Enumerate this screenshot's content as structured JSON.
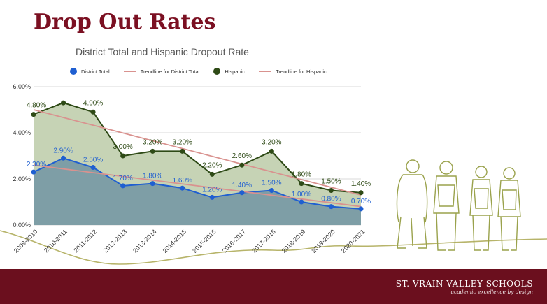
{
  "slide": {
    "title": "Drop Out Rates"
  },
  "brand": {
    "name": "ST. VRAIN VALLEY SCHOOLS",
    "tagline": "academic excellence by design"
  },
  "colors": {
    "brand": "#6b0f1e",
    "district": "#1f5fd1",
    "hispanic": "#2e4a16",
    "trendline": "#d9928f"
  },
  "chart_data": {
    "type": "area",
    "title": "District Total and Hispanic  Dropout Rate",
    "categories": [
      "2009-2010",
      "2010-2011",
      "2011-2012",
      "2012-2013",
      "2013-2014",
      "2014-2015",
      "2015-2016",
      "2016-2017",
      "2017-2018",
      "2018-2019",
      "2019-2020",
      "2020-2021"
    ],
    "series": [
      {
        "name": "District Total",
        "values": [
          2.3,
          2.9,
          2.5,
          1.7,
          1.8,
          1.6,
          1.2,
          1.4,
          1.5,
          1.0,
          0.8,
          0.7
        ],
        "labels": [
          "2.30%",
          "2.90%",
          "2.50%",
          "1.70%",
          "1.80%",
          "1.60%",
          "1.20%",
          "1.40%",
          "1.50%",
          "1.00%",
          "0.80%",
          "0.70%"
        ]
      },
      {
        "name": "Hispanic",
        "values": [
          4.8,
          5.3,
          4.9,
          3.0,
          3.2,
          3.2,
          2.2,
          2.6,
          3.2,
          1.8,
          1.5,
          1.4
        ],
        "labels": [
          "4.80%",
          "",
          "4.90%",
          "3.00%",
          "3.20%",
          "3.20%",
          "2.20%",
          "2.60%",
          "3.20%",
          "1.80%",
          "1.50%",
          "1.40%"
        ]
      }
    ],
    "trendlines": [
      {
        "name": "Trendline for District Total",
        "start": 2.6,
        "end": 0.8
      },
      {
        "name": "Trendline for Hispanic",
        "start": 5.0,
        "end": 1.3
      }
    ],
    "yticks": [
      "0.00%",
      "2.00%",
      "4.00%",
      "6.00%"
    ],
    "ytick_values": [
      0,
      2,
      4,
      6
    ],
    "ylim": [
      0,
      6
    ],
    "grid": true,
    "legend_position": "top"
  }
}
